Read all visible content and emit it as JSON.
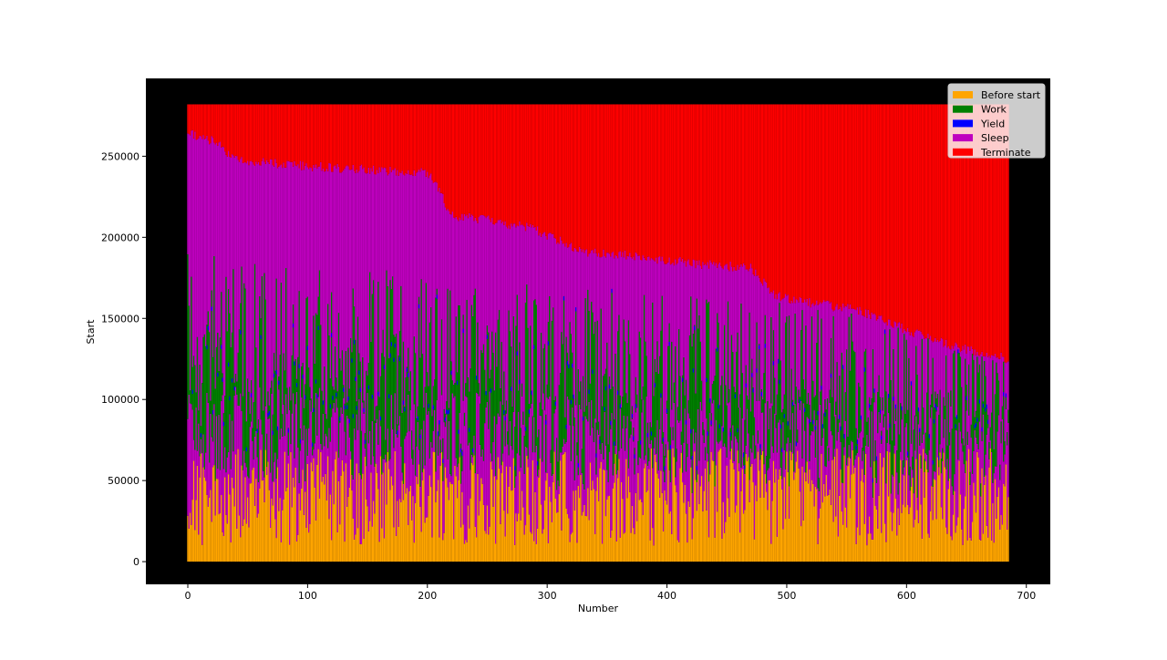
{
  "chart_data": {
    "type": "bar",
    "title": "",
    "xlabel": "Number",
    "ylabel": "Start",
    "xlim": [
      -35,
      720
    ],
    "ylim": [
      -14000,
      298000
    ],
    "x_ticks": [
      0,
      100,
      200,
      300,
      400,
      500,
      600,
      700
    ],
    "x_tick_labels": [
      "0",
      "100",
      "200",
      "300",
      "400",
      "500",
      "600",
      "700"
    ],
    "y_ticks": [
      0,
      50000,
      100000,
      150000,
      200000,
      250000
    ],
    "y_tick_labels": [
      "0",
      "50000",
      "100000",
      "150000",
      "200000",
      "250000"
    ],
    "grid": false,
    "background": "#000000",
    "legend_position": "top-right",
    "bar_count": 686,
    "series": [
      {
        "name": "Before start",
        "color": "#ffa500"
      },
      {
        "name": "Work",
        "color": "#008000"
      },
      {
        "name": "Yield",
        "color": "#0000ff"
      },
      {
        "name": "Sleep",
        "color": "#bf00bf"
      },
      {
        "name": "Terminate",
        "color": "#ff0000"
      }
    ],
    "terminate_end": 282000,
    "sleep_top_profile": {
      "x": [
        0,
        10,
        25,
        35,
        50,
        80,
        100,
        140,
        170,
        200,
        210,
        220,
        250,
        290,
        330,
        380,
        420,
        470,
        490,
        500,
        560,
        600,
        640,
        685
      ],
      "y": [
        268000,
        265000,
        262000,
        254000,
        250000,
        248000,
        247000,
        245000,
        244000,
        243000,
        232000,
        216000,
        214000,
        208000,
        194000,
        191000,
        187000,
        184000,
        168000,
        165000,
        158000,
        146000,
        136000,
        128000
      ]
    },
    "typical_bands": {
      "before_start_top": [
        10000,
        70000
      ],
      "sleep1_top": [
        50000,
        110000
      ],
      "work_top": [
        80000,
        190000
      ]
    }
  }
}
